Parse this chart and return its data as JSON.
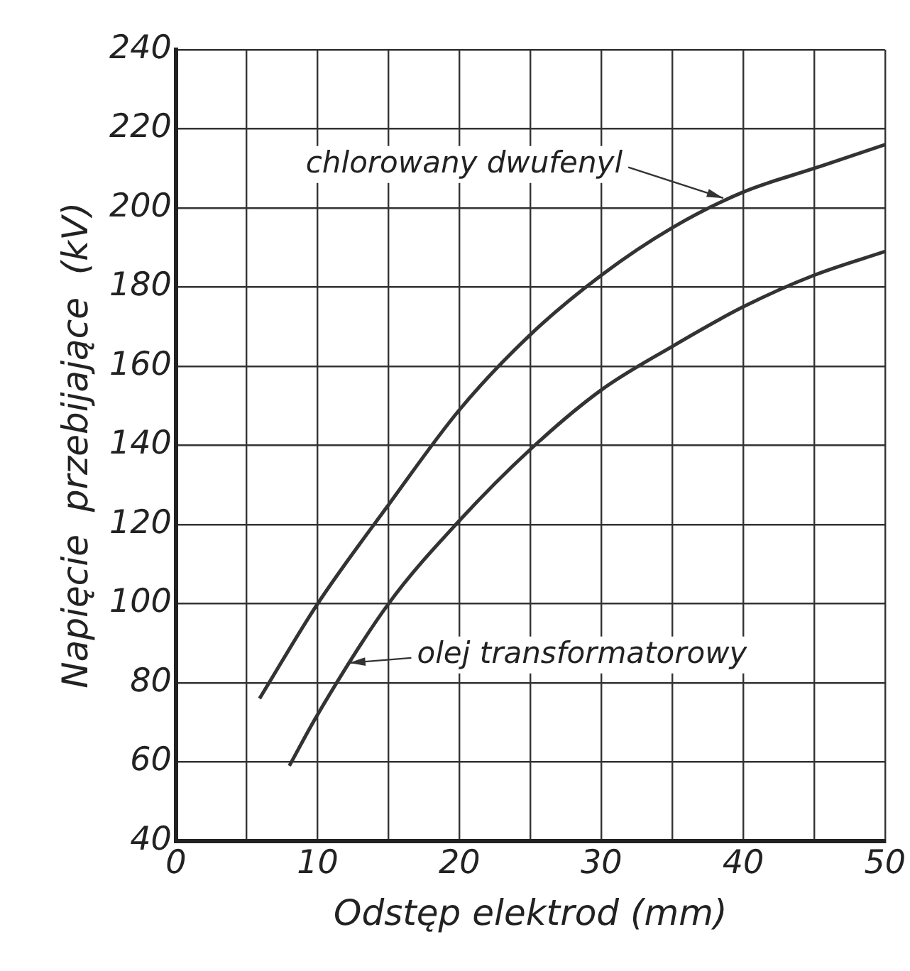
{
  "chart_data": {
    "type": "line",
    "xlabel": "Odstęp elektrod (mm)",
    "ylabel": "Napięcie  przebijające  (kV)",
    "xlim": [
      0,
      50
    ],
    "xticks": [
      0,
      {
        "value": 5,
        "label": null
      },
      10,
      {
        "value": 15,
        "label": null
      },
      20,
      {
        "value": 25,
        "label": null
      },
      30,
      {
        "value": 35,
        "label": null
      },
      40,
      {
        "value": 45,
        "label": null
      },
      50
    ],
    "ylim": [
      40,
      240
    ],
    "yticks": [
      40,
      60,
      80,
      100,
      120,
      140,
      160,
      180,
      200,
      220,
      240
    ],
    "grid": true,
    "marker": "none",
    "line_style": "solid",
    "series": [
      {
        "name": "chlorowany dwufenyl",
        "color": "#333333",
        "x": [
          5.9,
          10,
          15,
          20,
          25,
          30,
          35,
          40,
          45,
          50
        ],
        "values": [
          76,
          100,
          125,
          149,
          168,
          183,
          195,
          204,
          210,
          216
        ]
      },
      {
        "name": "olej transformatorowy",
        "color": "#333333",
        "x": [
          8,
          10,
          15,
          20,
          25,
          30,
          35,
          40,
          45,
          50
        ],
        "values": [
          59,
          72,
          100,
          121,
          139,
          154,
          165,
          175,
          183,
          189
        ]
      }
    ]
  }
}
